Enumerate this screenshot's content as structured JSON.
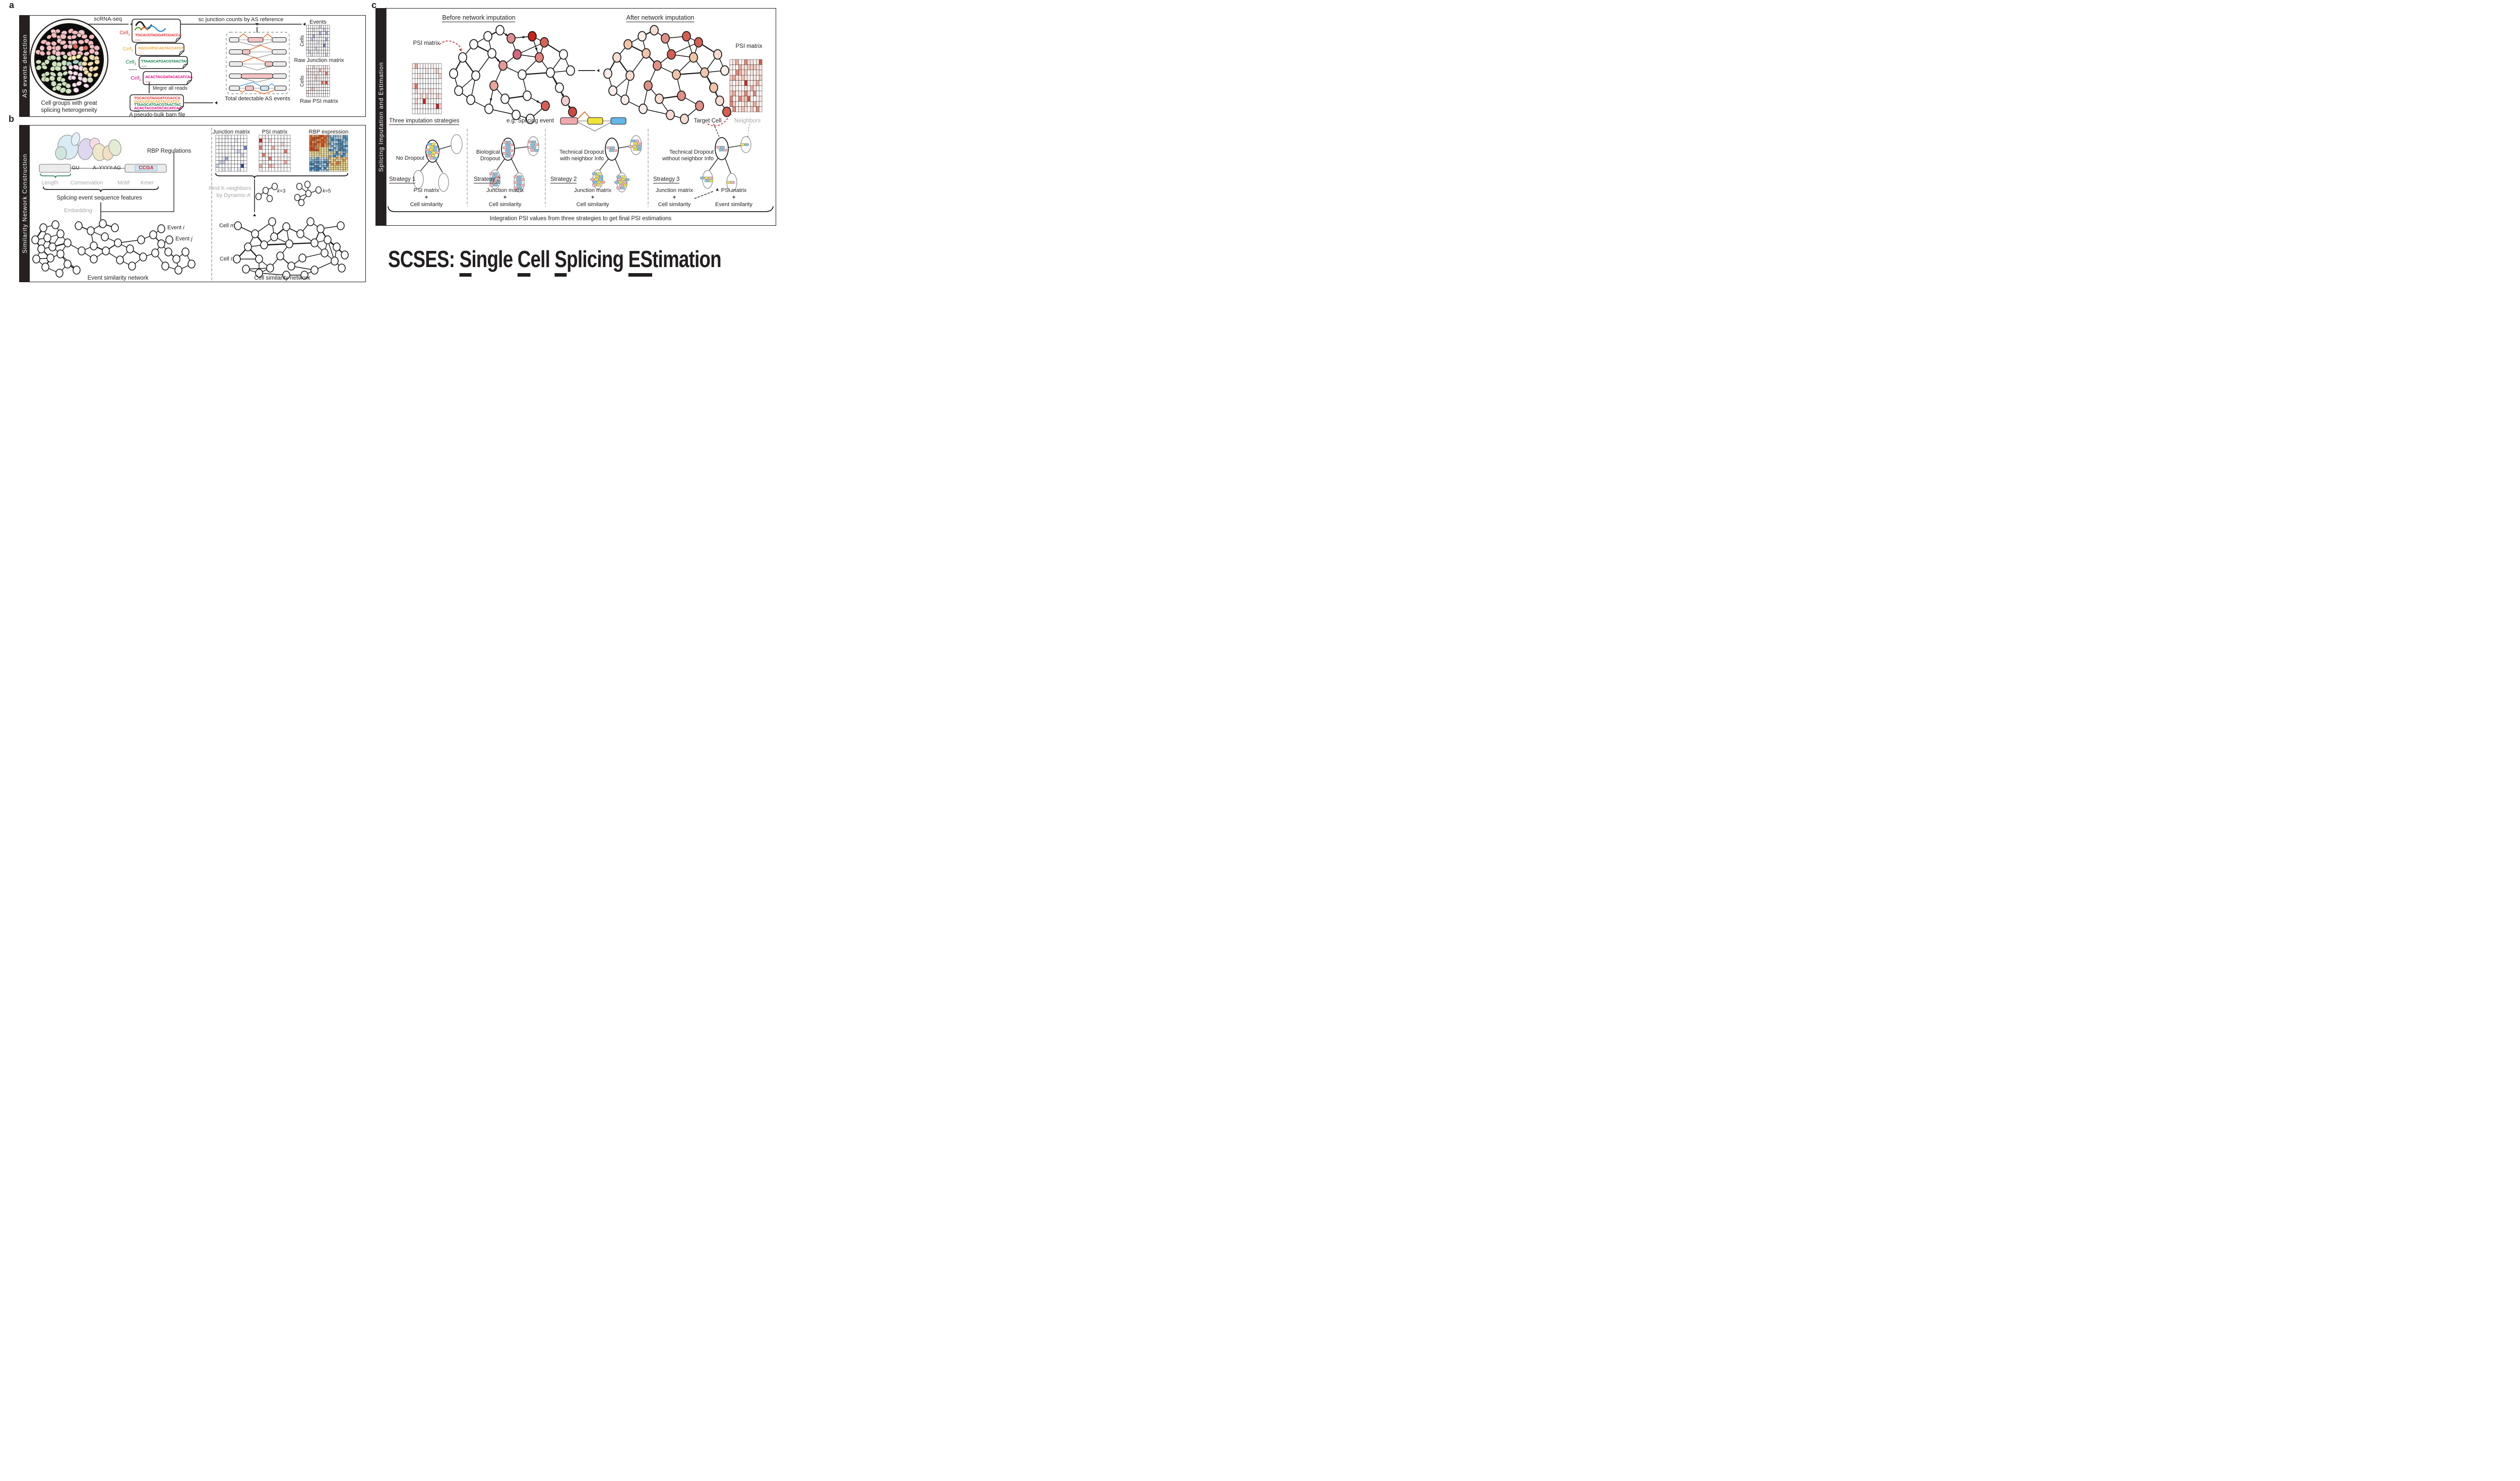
{
  "colors": {
    "figure_black": "#231f20",
    "accent_red": "#cb2027",
    "gray_text": "#a7a9ac",
    "junction_orange": "#e8611c",
    "junction_blue": "#3b9ad9",
    "read_pink": "#f4b3ba",
    "read_blue": "#7ec5ea",
    "read_yellow": "#f3e23e",
    "matrix_blue": "#2b4ba0",
    "matrix_red": "#d8423a"
  },
  "panel_a": {
    "letter": "a",
    "sidebar_label": "AS events detection",
    "scrna_seq_label": "scRNA-seq",
    "circle_caption": [
      "Cell groups with great",
      "splicing heterogeneity"
    ],
    "cell_reads": [
      {
        "cell": "Cell",
        "sub": "1",
        "sequence": "TGCACGTAGGATCGACCA",
        "color": "#e02927"
      },
      {
        "cell": "Cell",
        "sub": "2",
        "sequence": "GGCCATGCAGTACCATGT",
        "color": "#efa32f"
      },
      {
        "cell": "Cell",
        "sub": "3",
        "sequence": "TTAAGCATGACGTAACTAC",
        "color": "#0c7b43"
      },
      {
        "cell": "Cell",
        "sub": "n",
        "sequence": "ACACTACGATACACATCAA",
        "color": "#e5007e"
      }
    ],
    "dots": "......",
    "merge_label": "Megre all reads",
    "pseudo_bulk_caption": "A pseudo-bulk bam file",
    "junction_counts_label": "sc junction counts by AS reference",
    "events_axis_label": "Events",
    "cells_axis_label": "Cells",
    "raw_junction_caption": "Raw Junction matrix",
    "raw_psi_caption": "Raw PSI matrix",
    "as_events_caption": "Total detectable AS events"
  },
  "panel_b": {
    "letter": "b",
    "sidebar_label": "Similarity Network Construction",
    "rbp_label": "RBP Regulations",
    "donor_label": "GU",
    "acceptor_label": "A–YYYY-AG",
    "motif_label": "CCGA",
    "feature_labels": [
      "Length",
      "Conservation",
      "Motif",
      "Kmer"
    ],
    "features_caption": "Splicing event sequence features",
    "embedding_label": "Embedding",
    "event_i": {
      "prefix": "Event ",
      "var": "i"
    },
    "event_j": {
      "prefix": "Event ",
      "var": "j"
    },
    "event_network_caption": "Event similarity network",
    "junction_matrix_label": "Junction matrix",
    "psi_matrix_label": "PSI matrix",
    "rbp_expression_label": "RBP expression",
    "find_k_line1": "Find K-neighbors",
    "find_k_line2": {
      "prefix": "by Dynamic-",
      "var": "K"
    },
    "k3": {
      "var": "k",
      "rest": "=3"
    },
    "k5": {
      "var": "k",
      "rest": "=5"
    },
    "cell_m": {
      "prefix": "Cell ",
      "var": "m"
    },
    "cell_n": {
      "prefix": "Cell ",
      "var": "n"
    },
    "cell_network_caption": "Cell similarity network"
  },
  "panel_c": {
    "letter": "c",
    "sidebar_label": "Splicing Imputation and Estimation",
    "before_heading": "Before network imputation",
    "after_heading": "After network imputation",
    "psi_left_label": "PSI matrix",
    "psi_right_label": "PSI matrix",
    "strategies_heading": "Three imputation strategies",
    "splicing_event_label": "e.g. Splicing event",
    "target_cell_label": "Target Cell",
    "neighbors_label": "Neighbors",
    "columns": [
      {
        "condition_lines": [
          "No Dropout",
          ""
        ],
        "strategy": "Strategy 1",
        "inputs": [
          "PSI matrix",
          "+",
          "Cell similarity"
        ]
      },
      {
        "condition_lines": [
          "Biological",
          "Dropout"
        ],
        "strategy": "Strategy 2",
        "inputs": [
          "Junction matrix",
          "+",
          "Cell similarity"
        ]
      },
      {
        "condition_lines": [
          "Technical Dropout",
          "with neighbor Info"
        ],
        "strategy": "Strategy 2",
        "inputs": [
          "Junction matrix",
          "+",
          "Cell similarity"
        ]
      },
      {
        "condition_lines": [
          "Technical Dropout",
          "without neighbor Info"
        ],
        "strategy": "Strategy 3",
        "inputs": [
          "Junction matrix",
          "+",
          "Cell similarity"
        ],
        "secondary_inputs": [
          "PSI matrix",
          "+",
          "Event similarity"
        ]
      }
    ],
    "integration_caption": "Integration PSI values from three strategies to get final PSI estimations"
  },
  "title": {
    "segments": [
      {
        "t": "SCSES: ",
        "u": false
      },
      {
        "t": "S",
        "u": true
      },
      {
        "t": "ingle ",
        "u": false
      },
      {
        "t": "C",
        "u": true
      },
      {
        "t": "ell ",
        "u": false
      },
      {
        "t": "S",
        "u": true
      },
      {
        "t": "plicing ",
        "u": false
      },
      {
        "t": "ES",
        "u": true
      },
      {
        "t": "timation",
        "u": false
      }
    ]
  },
  "matrices": {
    "raw_junction": {
      "rows": 10,
      "cols": 11,
      "palette": "blue",
      "density": 0.22,
      "seed": 11
    },
    "raw_psi": {
      "rows": 10,
      "cols": 11,
      "palette": "red",
      "density": 0.22,
      "seed": 22
    },
    "junction_b": {
      "rows": 10,
      "cols": 10,
      "palette": "blue",
      "density": 0.22,
      "seed": 33
    },
    "psi_b": {
      "rows": 10,
      "cols": 10,
      "palette": "red",
      "density": 0.2,
      "seed": 44
    },
    "rbp_expression": {
      "rows": 18,
      "cols": 16,
      "palette": "rbp",
      "density": 1,
      "seed": 55
    },
    "psi_before": {
      "rows": 10,
      "cols": 11,
      "palette": "red",
      "density": 0.24,
      "seed": 66
    },
    "psi_after": {
      "rows": 10,
      "cols": 11,
      "palette": "red_dense",
      "density": 0.8,
      "seed": 77
    }
  }
}
